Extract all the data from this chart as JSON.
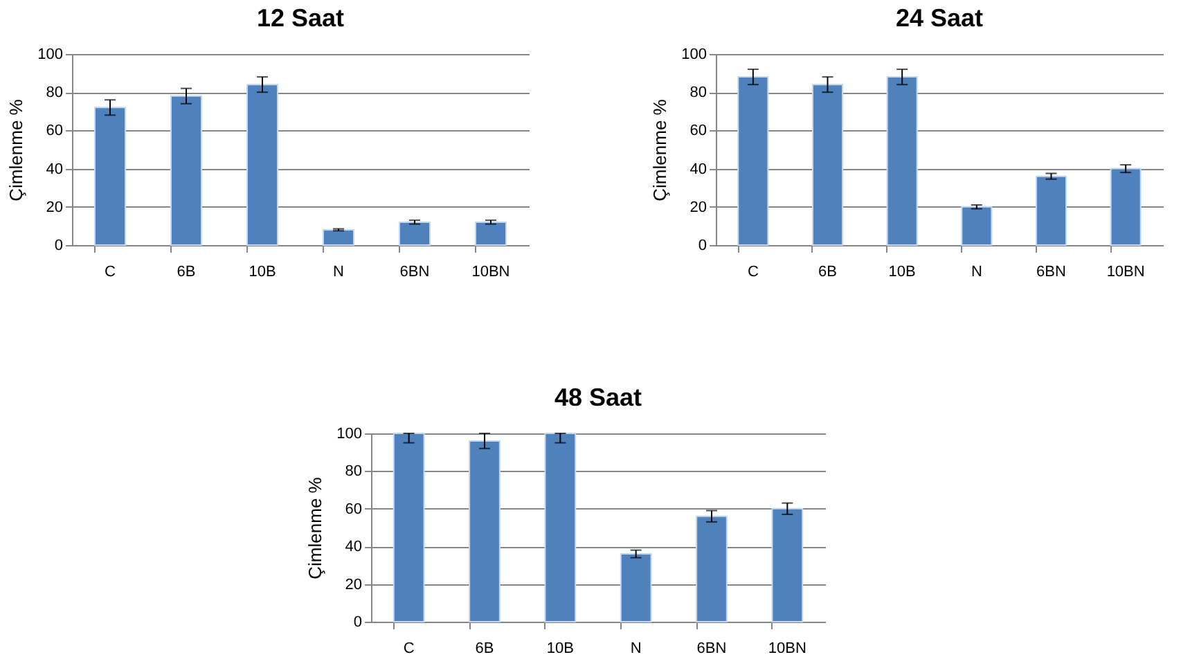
{
  "chart_data": [
    {
      "type": "bar",
      "title": "12 Saat",
      "ylabel": "Çimlenme %",
      "categories": [
        "C",
        "6B",
        "10B",
        "N",
        "6BN",
        "10BN"
      ],
      "series": [
        {
          "color": "#4f81bd",
          "values": [
            72,
            78,
            84,
            8,
            12,
            12
          ],
          "errors": [
            4,
            4,
            4,
            0.5,
            1,
            1
          ]
        }
      ],
      "ylim": [
        0,
        100
      ],
      "yticks": [
        0,
        20,
        40,
        60,
        80,
        100
      ],
      "grid": "y",
      "legend": false
    },
    {
      "type": "bar",
      "title": "24 Saat",
      "ylabel": "Çimlenme %",
      "categories": [
        "C",
        "6B",
        "10B",
        "N",
        "6BN",
        "10BN"
      ],
      "series": [
        {
          "color": "#4f81bd",
          "values": [
            88,
            84,
            88,
            20,
            36,
            40
          ],
          "errors": [
            4,
            4,
            4,
            1,
            1.5,
            2
          ]
        }
      ],
      "ylim": [
        0,
        100
      ],
      "yticks": [
        0,
        20,
        40,
        60,
        80,
        100
      ],
      "grid": "y",
      "legend": false
    },
    {
      "type": "bar",
      "title": "48 Saat",
      "ylabel": "Çimlenme %",
      "categories": [
        "C",
        "6B",
        "10B",
        "N",
        "6BN",
        "10BN"
      ],
      "series": [
        {
          "color": "#4f81bd",
          "values": [
            100,
            96,
            100,
            36,
            56,
            60
          ],
          "errors": [
            [
              95,
              100
            ],
            [
              92,
              100
            ],
            [
              95,
              100
            ],
            2,
            3,
            3
          ]
        }
      ],
      "ylim": [
        0,
        100
      ],
      "yticks": [
        0,
        20,
        40,
        60,
        80,
        100
      ],
      "grid": "y",
      "legend": false
    }
  ]
}
